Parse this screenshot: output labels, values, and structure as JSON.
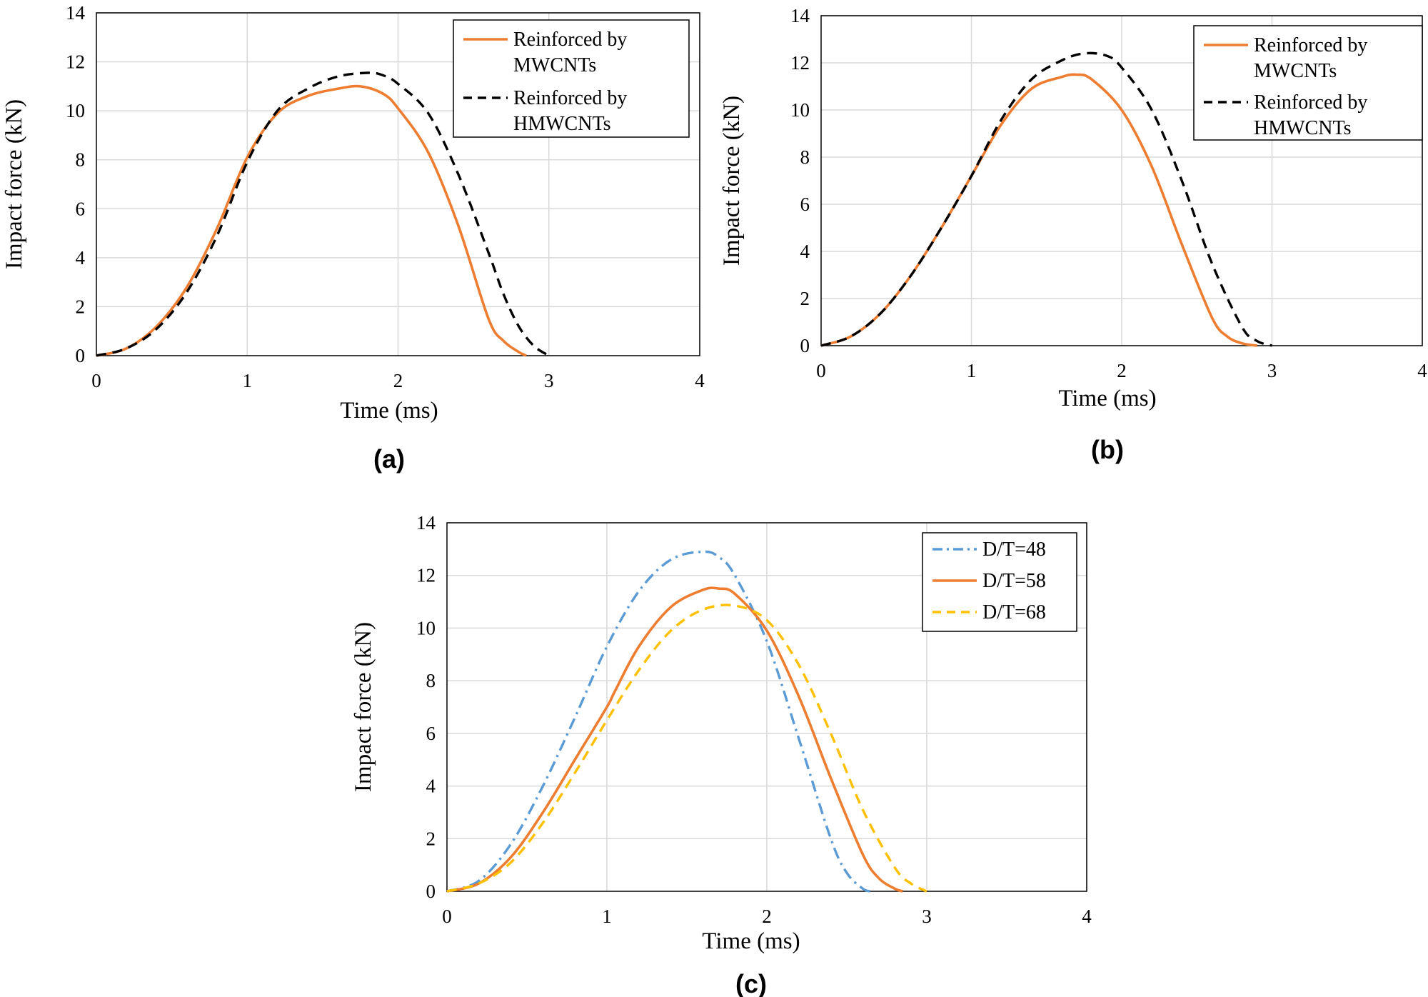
{
  "chart_data": [
    {
      "id": "a",
      "type": "line",
      "panel_label": "(a)",
      "xlabel": "Time (ms)",
      "ylabel": "Impact force (kN)",
      "xlim": [
        0,
        4
      ],
      "ylim": [
        0,
        14
      ],
      "xticks": [
        "0",
        "1",
        "2",
        "3",
        "4"
      ],
      "yticks": [
        "0",
        "2",
        "4",
        "6",
        "8",
        "10",
        "12",
        "14"
      ],
      "grid": true,
      "legend_position": "top-right",
      "series": [
        {
          "name": [
            "Reinforced by",
            "MWCNTs"
          ],
          "color": "#ED7D31",
          "dash": "solid",
          "x": [
            0,
            0.2,
            0.4,
            0.6,
            0.8,
            1.0,
            1.2,
            1.4,
            1.6,
            1.75,
            1.9,
            2.0,
            2.2,
            2.4,
            2.6,
            2.7,
            2.8,
            2.85
          ],
          "y": [
            0,
            0.3,
            1.2,
            2.8,
            5.2,
            8.1,
            9.9,
            10.6,
            10.9,
            11.0,
            10.7,
            10.1,
            8.3,
            5.3,
            1.5,
            0.6,
            0.15,
            0
          ]
        },
        {
          "name": [
            "Reinforced by",
            "HMWCNTs"
          ],
          "color": "#000000",
          "dash": "dashed",
          "x": [
            0,
            0.2,
            0.4,
            0.6,
            0.8,
            1.0,
            1.2,
            1.4,
            1.6,
            1.8,
            1.9,
            2.0,
            2.2,
            2.4,
            2.6,
            2.7,
            2.8,
            2.9,
            3.0
          ],
          "y": [
            0,
            0.3,
            1.1,
            2.6,
            4.9,
            7.9,
            10.0,
            10.9,
            11.4,
            11.55,
            11.45,
            11.1,
            9.9,
            7.4,
            4.2,
            2.5,
            1.2,
            0.4,
            0
          ]
        }
      ]
    },
    {
      "id": "b",
      "type": "line",
      "panel_label": "(b)",
      "xlabel": "Time (ms)",
      "ylabel": "Impact force (kN)",
      "xlim": [
        0,
        4
      ],
      "ylim": [
        0,
        14
      ],
      "xticks": [
        "0",
        "1",
        "2",
        "3",
        "4"
      ],
      "yticks": [
        "0",
        "2",
        "4",
        "6",
        "8",
        "10",
        "12",
        "14"
      ],
      "grid": true,
      "legend_position": "top-right",
      "series": [
        {
          "name": [
            "Reinforced by",
            "MWCNTs"
          ],
          "color": "#ED7D31",
          "dash": "solid",
          "x": [
            0,
            0.2,
            0.4,
            0.6,
            0.8,
            1.0,
            1.2,
            1.4,
            1.6,
            1.7,
            1.8,
            2.0,
            2.2,
            2.4,
            2.6,
            2.7,
            2.8,
            2.9
          ],
          "y": [
            0,
            0.4,
            1.4,
            3.0,
            5.0,
            7.2,
            9.4,
            10.9,
            11.4,
            11.5,
            11.3,
            10.0,
            7.6,
            4.3,
            1.2,
            0.4,
            0.1,
            0
          ]
        },
        {
          "name": [
            "Reinforced by",
            "HMWCNTs"
          ],
          "color": "#000000",
          "dash": "dashed",
          "x": [
            0,
            0.2,
            0.4,
            0.6,
            0.8,
            1.0,
            1.2,
            1.4,
            1.6,
            1.75,
            1.9,
            2.0,
            2.2,
            2.4,
            2.6,
            2.8,
            2.9,
            3.0
          ],
          "y": [
            0,
            0.4,
            1.4,
            3.0,
            5.0,
            7.2,
            9.6,
            11.3,
            12.1,
            12.4,
            12.3,
            11.8,
            10.0,
            7.0,
            3.5,
            0.8,
            0.2,
            0
          ]
        }
      ]
    },
    {
      "id": "c",
      "type": "line",
      "panel_label": "(c)",
      "xlabel": "Time (ms)",
      "ylabel": "Impact force (kN)",
      "xlim": [
        0,
        4
      ],
      "ylim": [
        0,
        14
      ],
      "xticks": [
        "0",
        "1",
        "2",
        "3",
        "4"
      ],
      "yticks": [
        "0",
        "2",
        "4",
        "6",
        "8",
        "10",
        "12",
        "14"
      ],
      "grid": true,
      "legend_position": "top-right",
      "series": [
        {
          "name": [
            "D/T=48"
          ],
          "color": "#5B9BD5",
          "dash": "dashdot",
          "x": [
            0,
            0.2,
            0.4,
            0.6,
            0.8,
            1.0,
            1.2,
            1.4,
            1.6,
            1.7,
            1.8,
            2.0,
            2.2,
            2.4,
            2.5,
            2.6,
            2.65
          ],
          "y": [
            0,
            0.4,
            1.8,
            4.0,
            6.6,
            9.3,
            11.4,
            12.6,
            12.9,
            12.7,
            12.0,
            9.5,
            5.8,
            2.0,
            0.7,
            0.1,
            0
          ]
        },
        {
          "name": [
            "D/T=58"
          ],
          "color": "#ED7D31",
          "dash": "solid",
          "x": [
            0,
            0.2,
            0.4,
            0.6,
            0.8,
            1.0,
            1.05,
            1.2,
            1.4,
            1.6,
            1.7,
            1.8,
            2.0,
            2.2,
            2.4,
            2.6,
            2.7,
            2.8,
            2.85
          ],
          "y": [
            0,
            0.3,
            1.3,
            3.0,
            5.0,
            7.0,
            7.6,
            9.3,
            10.8,
            11.45,
            11.5,
            11.3,
            9.9,
            7.4,
            4.3,
            1.4,
            0.5,
            0.1,
            0
          ]
        },
        {
          "name": [
            "D/T=68"
          ],
          "color": "#FFC000",
          "dash": "dashed",
          "x": [
            0,
            0.2,
            0.4,
            0.6,
            0.8,
            1.0,
            1.2,
            1.4,
            1.6,
            1.8,
            2.0,
            2.2,
            2.4,
            2.6,
            2.8,
            2.9,
            3.0
          ],
          "y": [
            0,
            0.3,
            1.1,
            2.6,
            4.5,
            6.5,
            8.4,
            9.9,
            10.7,
            10.85,
            10.3,
            8.6,
            6.0,
            3.1,
            0.9,
            0.3,
            0
          ]
        }
      ]
    }
  ]
}
